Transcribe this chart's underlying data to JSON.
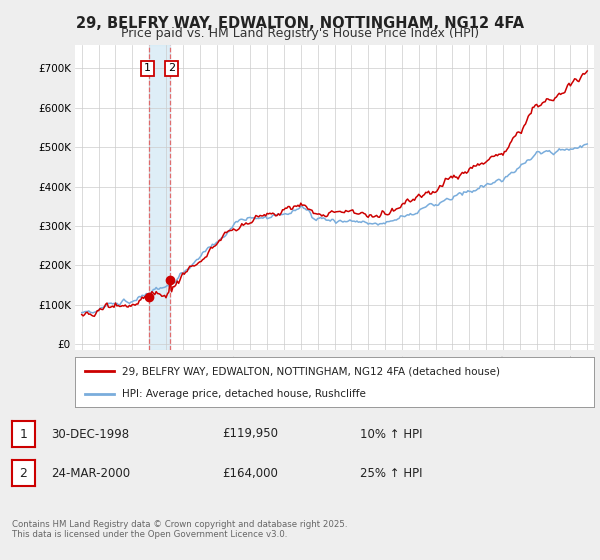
{
  "title": "29, BELFRY WAY, EDWALTON, NOTTINGHAM, NG12 4FA",
  "subtitle": "Price paid vs. HM Land Registry's House Price Index (HPI)",
  "red_label": "29, BELFRY WAY, EDWALTON, NOTTINGHAM, NG12 4FA (detached house)",
  "blue_label": "HPI: Average price, detached house, Rushcliffe",
  "footer": "Contains HM Land Registry data © Crown copyright and database right 2025.\nThis data is licensed under the Open Government Licence v3.0.",
  "transaction1_date": "30-DEC-1998",
  "transaction1_price": "£119,950",
  "transaction1_hpi": "10% ↑ HPI",
  "transaction2_date": "24-MAR-2000",
  "transaction2_price": "£164,000",
  "transaction2_hpi": "25% ↑ HPI",
  "transaction1_x": 1998.99,
  "transaction1_y": 119950,
  "transaction2_x": 2000.23,
  "transaction2_y": 164000,
  "ylim_min": -15000,
  "ylim_max": 760000,
  "xlim_min": 1994.6,
  "xlim_max": 2025.4,
  "background_color": "#eeeeee",
  "plot_bg_color": "#ffffff",
  "red_color": "#cc0000",
  "blue_color": "#7aaddc",
  "grid_color": "#cccccc",
  "title_fontsize": 10.5,
  "subtitle_fontsize": 9,
  "ytick_labels": [
    "£0",
    "£100K",
    "£200K",
    "£300K",
    "£400K",
    "£500K",
    "£600K",
    "£700K"
  ],
  "yticks": [
    0,
    100000,
    200000,
    300000,
    400000,
    500000,
    600000,
    700000
  ],
  "xticks": [
    1995,
    1996,
    1997,
    1998,
    1999,
    2000,
    2001,
    2002,
    2003,
    2004,
    2005,
    2006,
    2007,
    2008,
    2009,
    2010,
    2011,
    2012,
    2013,
    2014,
    2015,
    2016,
    2017,
    2018,
    2019,
    2020,
    2021,
    2022,
    2023,
    2024,
    2025
  ]
}
